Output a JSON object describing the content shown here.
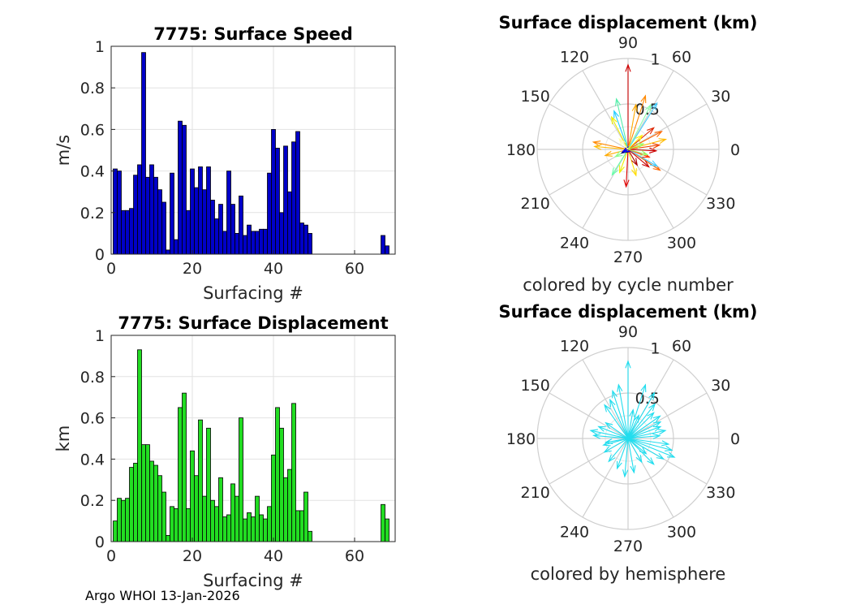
{
  "footer": "Argo WHOI 13-Jan-2026",
  "chart_data": [
    {
      "type": "bar",
      "title": "7775: Surface Speed",
      "xlabel": "Surfacing #",
      "ylabel": "m/s",
      "xlim": [
        0,
        70
      ],
      "ylim": [
        0,
        1
      ],
      "xticks": [
        "0",
        "20",
        "40",
        "60"
      ],
      "yticks": [
        "0",
        "0.2",
        "0.4",
        "0.6",
        "0.8",
        "1"
      ],
      "grid": true,
      "bar_color": "#0000c8",
      "x": [
        1,
        2,
        3,
        4,
        5,
        6,
        7,
        8,
        9,
        10,
        11,
        12,
        13,
        14,
        15,
        16,
        17,
        18,
        19,
        20,
        21,
        22,
        23,
        24,
        25,
        26,
        27,
        28,
        29,
        30,
        31,
        32,
        33,
        34,
        35,
        36,
        37,
        38,
        39,
        40,
        41,
        42,
        43,
        44,
        45,
        46,
        47,
        48,
        49,
        67,
        68
      ],
      "values": [
        0.41,
        0.4,
        0.21,
        0.21,
        0.22,
        0.38,
        0.43,
        0.97,
        0.37,
        0.43,
        0.37,
        0.31,
        0.25,
        0.02,
        0.39,
        0.07,
        0.64,
        0.62,
        0.21,
        0.41,
        0.32,
        0.42,
        0.31,
        0.42,
        0.26,
        0.17,
        0.24,
        0.11,
        0.4,
        0.24,
        0.1,
        0.28,
        0.09,
        0.14,
        0.11,
        0.11,
        0.12,
        0.12,
        0.39,
        0.6,
        0.51,
        0.2,
        0.52,
        0.3,
        0.54,
        0.59,
        0.15,
        0.14,
        0.1,
        0.09,
        0.04
      ]
    },
    {
      "type": "compass",
      "title": "Surface displacement (km)",
      "xlabel": "colored by cycle number",
      "rlim": [
        0,
        1
      ],
      "rticks": [
        "0.5",
        "1"
      ],
      "angle_ticks": [
        "0",
        "30",
        "60",
        "90",
        "120",
        "150",
        "180",
        "210",
        "240",
        "270",
        "300",
        "330"
      ],
      "arrows": [
        {
          "r": 0.93,
          "theta": 90,
          "color": "#cc0000"
        },
        {
          "r": 0.62,
          "theta": 72,
          "color": "#ff8800"
        },
        {
          "r": 0.6,
          "theta": 58,
          "color": "#44ccff"
        },
        {
          "r": 0.55,
          "theta": 63,
          "color": "#88ffaa"
        },
        {
          "r": 0.5,
          "theta": 80,
          "color": "#ffaa00"
        },
        {
          "r": 0.57,
          "theta": 103,
          "color": "#55eeaa"
        },
        {
          "r": 0.45,
          "theta": 110,
          "color": "#22ccff"
        },
        {
          "r": 0.4,
          "theta": 117,
          "color": "#eeee00"
        },
        {
          "r": 0.37,
          "theta": 40,
          "color": "#dd2200"
        },
        {
          "r": 0.42,
          "theta": 28,
          "color": "#ff6600"
        },
        {
          "r": 0.43,
          "theta": 15,
          "color": "#ffbb00"
        },
        {
          "r": 0.35,
          "theta": 8,
          "color": "#ee4400"
        },
        {
          "r": 0.31,
          "theta": -3,
          "color": "#cc0000"
        },
        {
          "r": 0.39,
          "theta": 168,
          "color": "#ff8800"
        },
        {
          "r": 0.37,
          "theta": 175,
          "color": "#ffbb00"
        },
        {
          "r": 0.26,
          "theta": 195,
          "color": "#ffaa00"
        },
        {
          "r": 0.41,
          "theta": -93,
          "color": "#dd0000"
        },
        {
          "r": 0.27,
          "theta": -110,
          "color": "#eeee00"
        },
        {
          "r": 0.33,
          "theta": -122,
          "color": "#66ffaa"
        },
        {
          "r": 0.42,
          "theta": -33,
          "color": "#ff6600"
        },
        {
          "r": 0.37,
          "theta": -30,
          "color": "#44ccff"
        },
        {
          "r": 0.3,
          "theta": -40,
          "color": "#cc0000"
        },
        {
          "r": 0.25,
          "theta": -20,
          "color": "#ff3300"
        },
        {
          "r": 0.22,
          "theta": -15,
          "color": "#99ff66"
        },
        {
          "r": 0.3,
          "theta": -73,
          "color": "#ffdd00"
        },
        {
          "r": 0.2,
          "theta": -60,
          "color": "#aa0000"
        },
        {
          "r": 0.16,
          "theta": -150,
          "color": "#88ff88"
        },
        {
          "r": 0.08,
          "theta": 210,
          "color": "#000080"
        },
        {
          "r": 0.06,
          "theta": 200,
          "color": "#0000ff"
        },
        {
          "r": 0.22,
          "theta": 45,
          "color": "#ffee00"
        },
        {
          "r": 0.18,
          "theta": 20,
          "color": "#99ff66"
        },
        {
          "r": 0.15,
          "theta": 130,
          "color": "#ffffaa"
        }
      ]
    },
    {
      "type": "bar",
      "title": "7775: Surface Displacement",
      "xlabel": "Surfacing #",
      "ylabel": "km",
      "xlim": [
        0,
        70
      ],
      "ylim": [
        0,
        1
      ],
      "xticks": [
        "0",
        "20",
        "40",
        "60"
      ],
      "yticks": [
        "0",
        "0.2",
        "0.4",
        "0.6",
        "0.8",
        "1"
      ],
      "grid": true,
      "bar_color": "#22dd22",
      "x": [
        1,
        2,
        3,
        4,
        5,
        6,
        7,
        8,
        9,
        10,
        11,
        12,
        13,
        14,
        15,
        16,
        17,
        18,
        19,
        20,
        21,
        22,
        23,
        24,
        25,
        26,
        27,
        28,
        29,
        30,
        31,
        32,
        33,
        34,
        35,
        36,
        37,
        38,
        39,
        40,
        41,
        42,
        43,
        44,
        45,
        46,
        47,
        48,
        49,
        67,
        68
      ],
      "values": [
        0.1,
        0.21,
        0.2,
        0.21,
        0.36,
        0.38,
        0.93,
        0.47,
        0.47,
        0.39,
        0.37,
        0.32,
        0.24,
        0.03,
        0.17,
        0.16,
        0.65,
        0.72,
        0.16,
        0.44,
        0.32,
        0.59,
        0.22,
        0.55,
        0.2,
        0.17,
        0.31,
        0.12,
        0.13,
        0.28,
        0.22,
        0.6,
        0.11,
        0.14,
        0.12,
        0.22,
        0.13,
        0.11,
        0.17,
        0.42,
        0.65,
        0.55,
        0.31,
        0.35,
        0.67,
        0.15,
        0.15,
        0.24,
        0.05,
        0.18,
        0.11
      ]
    },
    {
      "type": "compass",
      "title": "Surface displacement (km)",
      "xlabel": "colored by hemisphere",
      "rlim": [
        0,
        1
      ],
      "rticks": [
        "0.5",
        "1"
      ],
      "angle_ticks": [
        "0",
        "30",
        "60",
        "90",
        "120",
        "150",
        "180",
        "210",
        "240",
        "270",
        "300",
        "330"
      ],
      "arrow_color": "#22ddee",
      "arrows": [
        {
          "r": 0.85,
          "theta": 90
        },
        {
          "r": 0.6,
          "theta": 100
        },
        {
          "r": 0.55,
          "theta": 108
        },
        {
          "r": 0.47,
          "theta": 115
        },
        {
          "r": 0.45,
          "theta": 125
        },
        {
          "r": 0.62,
          "theta": 72
        },
        {
          "r": 0.58,
          "theta": 60
        },
        {
          "r": 0.48,
          "theta": 52
        },
        {
          "r": 0.4,
          "theta": 45
        },
        {
          "r": 0.43,
          "theta": 35
        },
        {
          "r": 0.4,
          "theta": 27
        },
        {
          "r": 0.38,
          "theta": 20
        },
        {
          "r": 0.42,
          "theta": 12
        },
        {
          "r": 0.35,
          "theta": 5
        },
        {
          "r": 0.45,
          "theta": -8
        },
        {
          "r": 0.5,
          "theta": -15
        },
        {
          "r": 0.55,
          "theta": -22
        },
        {
          "r": 0.45,
          "theta": -30
        },
        {
          "r": 0.4,
          "theta": -45
        },
        {
          "r": 0.3,
          "theta": -60
        },
        {
          "r": 0.38,
          "theta": -80
        },
        {
          "r": 0.42,
          "theta": -95
        },
        {
          "r": 0.35,
          "theta": -110
        },
        {
          "r": 0.33,
          "theta": -130
        },
        {
          "r": 0.3,
          "theta": -150
        },
        {
          "r": 0.28,
          "theta": -165
        },
        {
          "r": 0.42,
          "theta": 168
        },
        {
          "r": 0.38,
          "theta": 175
        },
        {
          "r": 0.35,
          "theta": 158
        },
        {
          "r": 0.3,
          "theta": 145
        },
        {
          "r": 0.25,
          "theta": 190
        },
        {
          "r": 0.32,
          "theta": 80
        },
        {
          "r": 0.28,
          "theta": 65
        },
        {
          "r": 0.26,
          "theta": -40
        }
      ]
    }
  ]
}
